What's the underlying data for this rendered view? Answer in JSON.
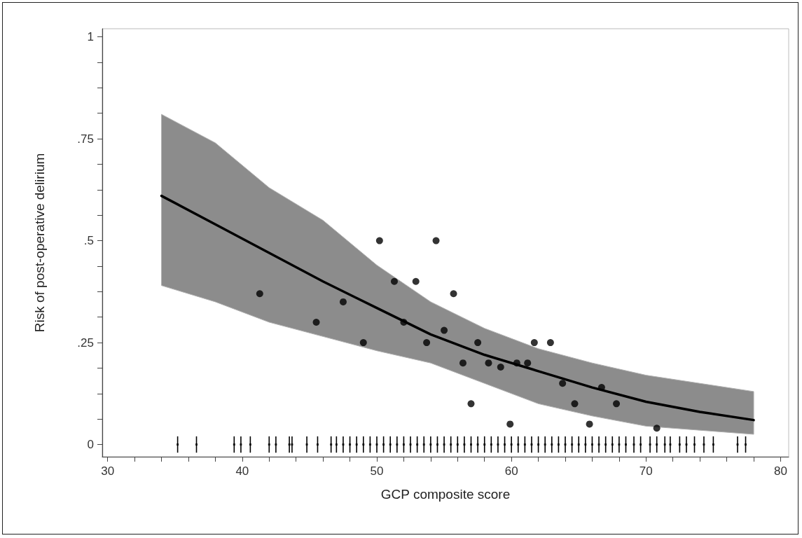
{
  "chart_data": {
    "type": "scatter",
    "xlabel": "GCP composite score",
    "ylabel": "Risk of post-operative delirium",
    "xlim": [
      29.6,
      80.6
    ],
    "ylim": [
      -0.03,
      1.02
    ],
    "xticks": [
      30,
      {
        "value": 32,
        "label": null
      },
      {
        "value": 34,
        "label": null
      },
      {
        "value": 36,
        "label": null
      },
      {
        "value": 38,
        "label": null
      },
      40,
      {
        "value": 42,
        "label": null
      },
      {
        "value": 44,
        "label": null
      },
      {
        "value": 46,
        "label": null
      },
      {
        "value": 48,
        "label": null
      },
      50,
      {
        "value": 52,
        "label": null
      },
      {
        "value": 54,
        "label": null
      },
      {
        "value": 56,
        "label": null
      },
      {
        "value": 58,
        "label": null
      },
      60,
      {
        "value": 62,
        "label": null
      },
      {
        "value": 64,
        "label": null
      },
      {
        "value": 66,
        "label": null
      },
      {
        "value": 68,
        "label": null
      },
      70,
      {
        "value": 72,
        "label": null
      },
      {
        "value": 74,
        "label": null
      },
      {
        "value": 76,
        "label": null
      },
      {
        "value": 78,
        "label": null
      },
      80
    ],
    "yticks": [
      0,
      {
        "value": 0.0625,
        "label": null
      },
      {
        "value": 0.125,
        "label": null
      },
      {
        "value": 0.1875,
        "label": null
      },
      {
        "value": 0.25,
        "label": ".25"
      },
      {
        "value": 0.3125,
        "label": null
      },
      {
        "value": 0.375,
        "label": null
      },
      {
        "value": 0.4375,
        "label": null
      },
      {
        "value": 0.5,
        "label": ".5"
      },
      {
        "value": 0.5625,
        "label": null
      },
      {
        "value": 0.625,
        "label": null
      },
      {
        "value": 0.6875,
        "label": null
      },
      {
        "value": 0.75,
        "label": ".75"
      },
      {
        "value": 0.8125,
        "label": null
      },
      {
        "value": 0.875,
        "label": null
      },
      {
        "value": 0.9375,
        "label": null
      },
      1
    ],
    "grid": false,
    "series": [
      {
        "type": "line",
        "color": "#000000",
        "marker": "none",
        "line_style": "solid",
        "x": [
          34,
          38,
          42,
          46,
          50,
          54,
          58,
          62,
          66,
          70,
          74,
          78
        ],
        "values": [
          0.61,
          0.54,
          0.47,
          0.4,
          0.335,
          0.27,
          0.22,
          0.18,
          0.14,
          0.105,
          0.08,
          0.06
        ],
        "lower": [
          0.39,
          0.35,
          0.3,
          0.265,
          0.23,
          0.2,
          0.15,
          0.1,
          0.07,
          0.045,
          0.035,
          0.025
        ],
        "upper": [
          0.81,
          0.74,
          0.63,
          0.55,
          0.44,
          0.35,
          0.285,
          0.235,
          0.2,
          0.17,
          0.15,
          0.13
        ]
      },
      {
        "color": "#000000",
        "marker": "circle",
        "x": [
          41.3,
          45.5,
          47.5,
          49.0,
          50.2,
          51.3,
          52.0,
          52.9,
          53.7,
          54.4,
          55.0,
          55.7,
          56.4,
          57.0,
          57.5,
          58.3,
          59.2,
          59.9,
          60.4,
          61.2,
          61.7,
          62.9,
          63.8,
          64.7,
          65.8,
          66.7,
          67.8,
          70.8
        ],
        "values": [
          0.37,
          0.3,
          0.35,
          0.25,
          0.5,
          0.4,
          0.3,
          0.4,
          0.25,
          0.5,
          0.28,
          0.37,
          0.2,
          0.1,
          0.25,
          0.2,
          0.19,
          0.05,
          0.2,
          0.2,
          0.25,
          0.25,
          0.15,
          0.1,
          0.05,
          0.14,
          0.1,
          0.04
        ]
      },
      {
        "color": "#000000",
        "marker": "square",
        "errors": [
          0.02,
          0.02,
          0.02,
          0.02,
          0.02,
          0.02,
          0.02,
          0.02,
          0.02,
          0.02,
          0.02,
          0.02,
          0.02,
          0.02,
          0.02,
          0.02,
          0.02,
          0.02,
          0.02,
          0.02,
          0.02,
          0.02,
          0.02,
          0.02,
          0.02,
          0.02,
          0.02,
          0.02,
          0.02,
          0.02,
          0.02,
          0.02,
          0.02,
          0.02,
          0.02,
          0.02,
          0.02,
          0.02,
          0.02,
          0.02,
          0.02,
          0.02,
          0.02,
          0.02,
          0.02,
          0.02,
          0.02,
          0.02,
          0.02,
          0.02,
          0.02,
          0.02,
          0.02,
          0.02,
          0.02,
          0.02,
          0.02,
          0.02,
          0.02,
          0.02,
          0.02,
          0.02,
          0.02,
          0.02,
          0.02,
          0.02,
          0.02,
          0.02,
          0.02
        ],
        "x": [
          35.2,
          36.6,
          39.4,
          39.9,
          40.6,
          42.0,
          42.5,
          43.5,
          43.7,
          44.8,
          45.6,
          46.6,
          47.0,
          47.5,
          48,
          48.5,
          49,
          49.5,
          50,
          50.5,
          51,
          51.5,
          52,
          52.5,
          53,
          53.5,
          54,
          54.5,
          55,
          55.5,
          56,
          56.5,
          57,
          57.5,
          58,
          58.5,
          59,
          59.5,
          60,
          60.5,
          61,
          61.5,
          62,
          62.5,
          63,
          63.5,
          64,
          64.5,
          65,
          65.5,
          66,
          66.5,
          67,
          67.5,
          68,
          68.5,
          69.1,
          69.6,
          70.3,
          70.8,
          71.4,
          71.8,
          72.5,
          73.0,
          73.6,
          74.3,
          75.0,
          76.8,
          77.4
        ],
        "values": [
          0,
          0,
          0,
          0,
          0,
          0,
          0,
          0,
          0,
          0,
          0,
          0,
          0,
          0,
          0,
          0,
          0,
          0,
          0,
          0,
          0,
          0,
          0,
          0,
          0,
          0,
          0,
          0,
          0,
          0,
          0,
          0,
          0,
          0,
          0,
          0,
          0,
          0,
          0,
          0,
          0,
          0,
          0,
          0,
          0,
          0,
          0,
          0,
          0,
          0,
          0,
          0,
          0,
          0,
          0,
          0,
          0,
          0,
          0,
          0,
          0,
          0,
          0,
          0,
          0,
          0,
          0,
          0,
          0
        ]
      }
    ]
  }
}
